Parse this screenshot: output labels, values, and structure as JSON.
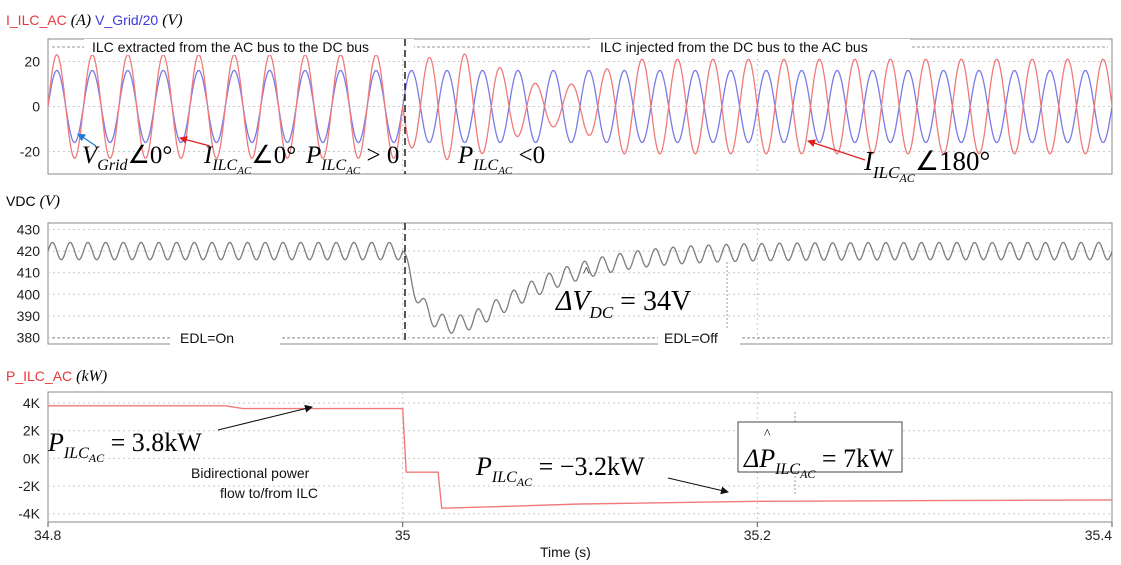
{
  "chart_data": [
    {
      "type": "line",
      "title_parts": [
        {
          "text": "I_ILC_AC",
          "color": "#e8383b"
        },
        {
          "text": "(A)",
          "color": "#000000",
          "math": true
        },
        {
          "text": "V_Grid/20",
          "color": "#3b3bd9"
        },
        {
          "text": "(V)",
          "color": "#000000",
          "math": true
        }
      ],
      "xlim": [
        34.8,
        35.4
      ],
      "ylim": [
        -30,
        30
      ],
      "yticks": [
        -20,
        0,
        20
      ],
      "ytick_labels": [
        "-20",
        "0",
        "20"
      ],
      "grid": true,
      "series": [
        {
          "name": "I_ILC_AC",
          "color": "#f07a7a",
          "waveform": "sine",
          "frequency_hz": 50,
          "segments": [
            {
              "x_start": 34.8,
              "x_end": 35.0,
              "amplitude": 23,
              "phase_deg": 0
            },
            {
              "x_start": 35.0,
              "x_end": 35.4,
              "amplitude": 21,
              "phase_deg": 180
            }
          ]
        },
        {
          "name": "V_Grid/20",
          "color": "#7a7ae8",
          "waveform": "sine",
          "frequency_hz": 50,
          "amplitude": 16,
          "phase_deg": 0
        }
      ],
      "annotations": {
        "region_left": "ILC extracted from the AC bus to the DC bus",
        "region_right": "ILC injected from the DC bus to the AC bus",
        "vgrid_angle": {
          "main": "V",
          "sub": "Grid",
          "tail": "∠0°"
        },
        "iilc_angle": {
          "main": "I",
          "sub": "ILC",
          "subsub": "AC",
          "tail": "∠0°"
        },
        "p_pos": {
          "main": "P",
          "sub": "ILC",
          "subsub": "AC",
          "tail": " > 0"
        },
        "p_neg": {
          "main": "P",
          "sub": "ILC",
          "subsub": "AC",
          "tail": " <0"
        },
        "iilc_angle_180": {
          "main": "I",
          "sub": "ILC",
          "subsub": "AC",
          "tail": "∠180°"
        }
      }
    },
    {
      "type": "line",
      "title_parts": [
        {
          "text": "VDC",
          "color": "#000000"
        },
        {
          "text": "(V)",
          "color": "#000000",
          "math": true
        }
      ],
      "xlim": [
        34.8,
        35.4
      ],
      "ylim": [
        377,
        433
      ],
      "yticks": [
        380,
        390,
        400,
        410,
        420,
        430
      ],
      "ytick_labels": [
        "380",
        "390",
        "400",
        "410",
        "420",
        "430"
      ],
      "grid": true,
      "series": [
        {
          "name": "VDC",
          "color": "#7c7c7c",
          "mean": 420,
          "ripple_amplitude": 4,
          "ripple_frequency_hz": 100,
          "dip": {
            "x_start": 35.0,
            "minimum": 386,
            "recovered_by": 35.2
          }
        }
      ],
      "annotations": {
        "edl_on": "EDL=On",
        "edl_off": "EDL=Off",
        "delta_vdc": {
          "main": "ΔV",
          "sub": "DC",
          "tail": " = 34V"
        }
      }
    },
    {
      "type": "line",
      "title_parts": [
        {
          "text": "P_ILC_AC",
          "color": "#e8383b"
        },
        {
          "text": "(kW)",
          "color": "#000000",
          "math": true
        }
      ],
      "xlim": [
        34.8,
        35.4
      ],
      "ylim": [
        -4600,
        4800
      ],
      "yticks": [
        -4000,
        -2000,
        0,
        2000,
        4000
      ],
      "ytick_labels": [
        "-4K",
        "-2K",
        "0K",
        "2K",
        "4K"
      ],
      "xticks": [
        34.8,
        35.0,
        35.2,
        35.4
      ],
      "xtick_labels": [
        "34.8",
        "35",
        "35.2",
        "35.4"
      ],
      "xlabel": "Time (s)",
      "grid": true,
      "series": [
        {
          "name": "P_ILC_AC",
          "color": "#f07a7a",
          "points": [
            [
              34.8,
              3800
            ],
            [
              34.9,
              3800
            ],
            [
              34.91,
              3600
            ],
            [
              35.0,
              3600
            ],
            [
              35.002,
              -1000
            ],
            [
              35.02,
              -1000
            ],
            [
              35.022,
              -3600
            ],
            [
              35.05,
              -3500
            ],
            [
              35.1,
              -3300
            ],
            [
              35.2,
              -3100
            ],
            [
              35.3,
              -3050
            ],
            [
              35.4,
              -3000
            ]
          ]
        }
      ],
      "annotations": {
        "p_high": {
          "main": "P",
          "sub": "ILC",
          "subsub": "AC",
          "tail": " = 3.8kW"
        },
        "p_low": {
          "main": "P",
          "sub": "ILC",
          "subsub": "AC",
          "tail": " = −3.2kW"
        },
        "delta_p": {
          "main": "ΔP",
          "sub": "ILC",
          "subsub": "AC",
          "tail": " = 7kW"
        },
        "note_line1": "Bidirectional power",
        "note_line2": "flow to/from ILC"
      }
    }
  ]
}
